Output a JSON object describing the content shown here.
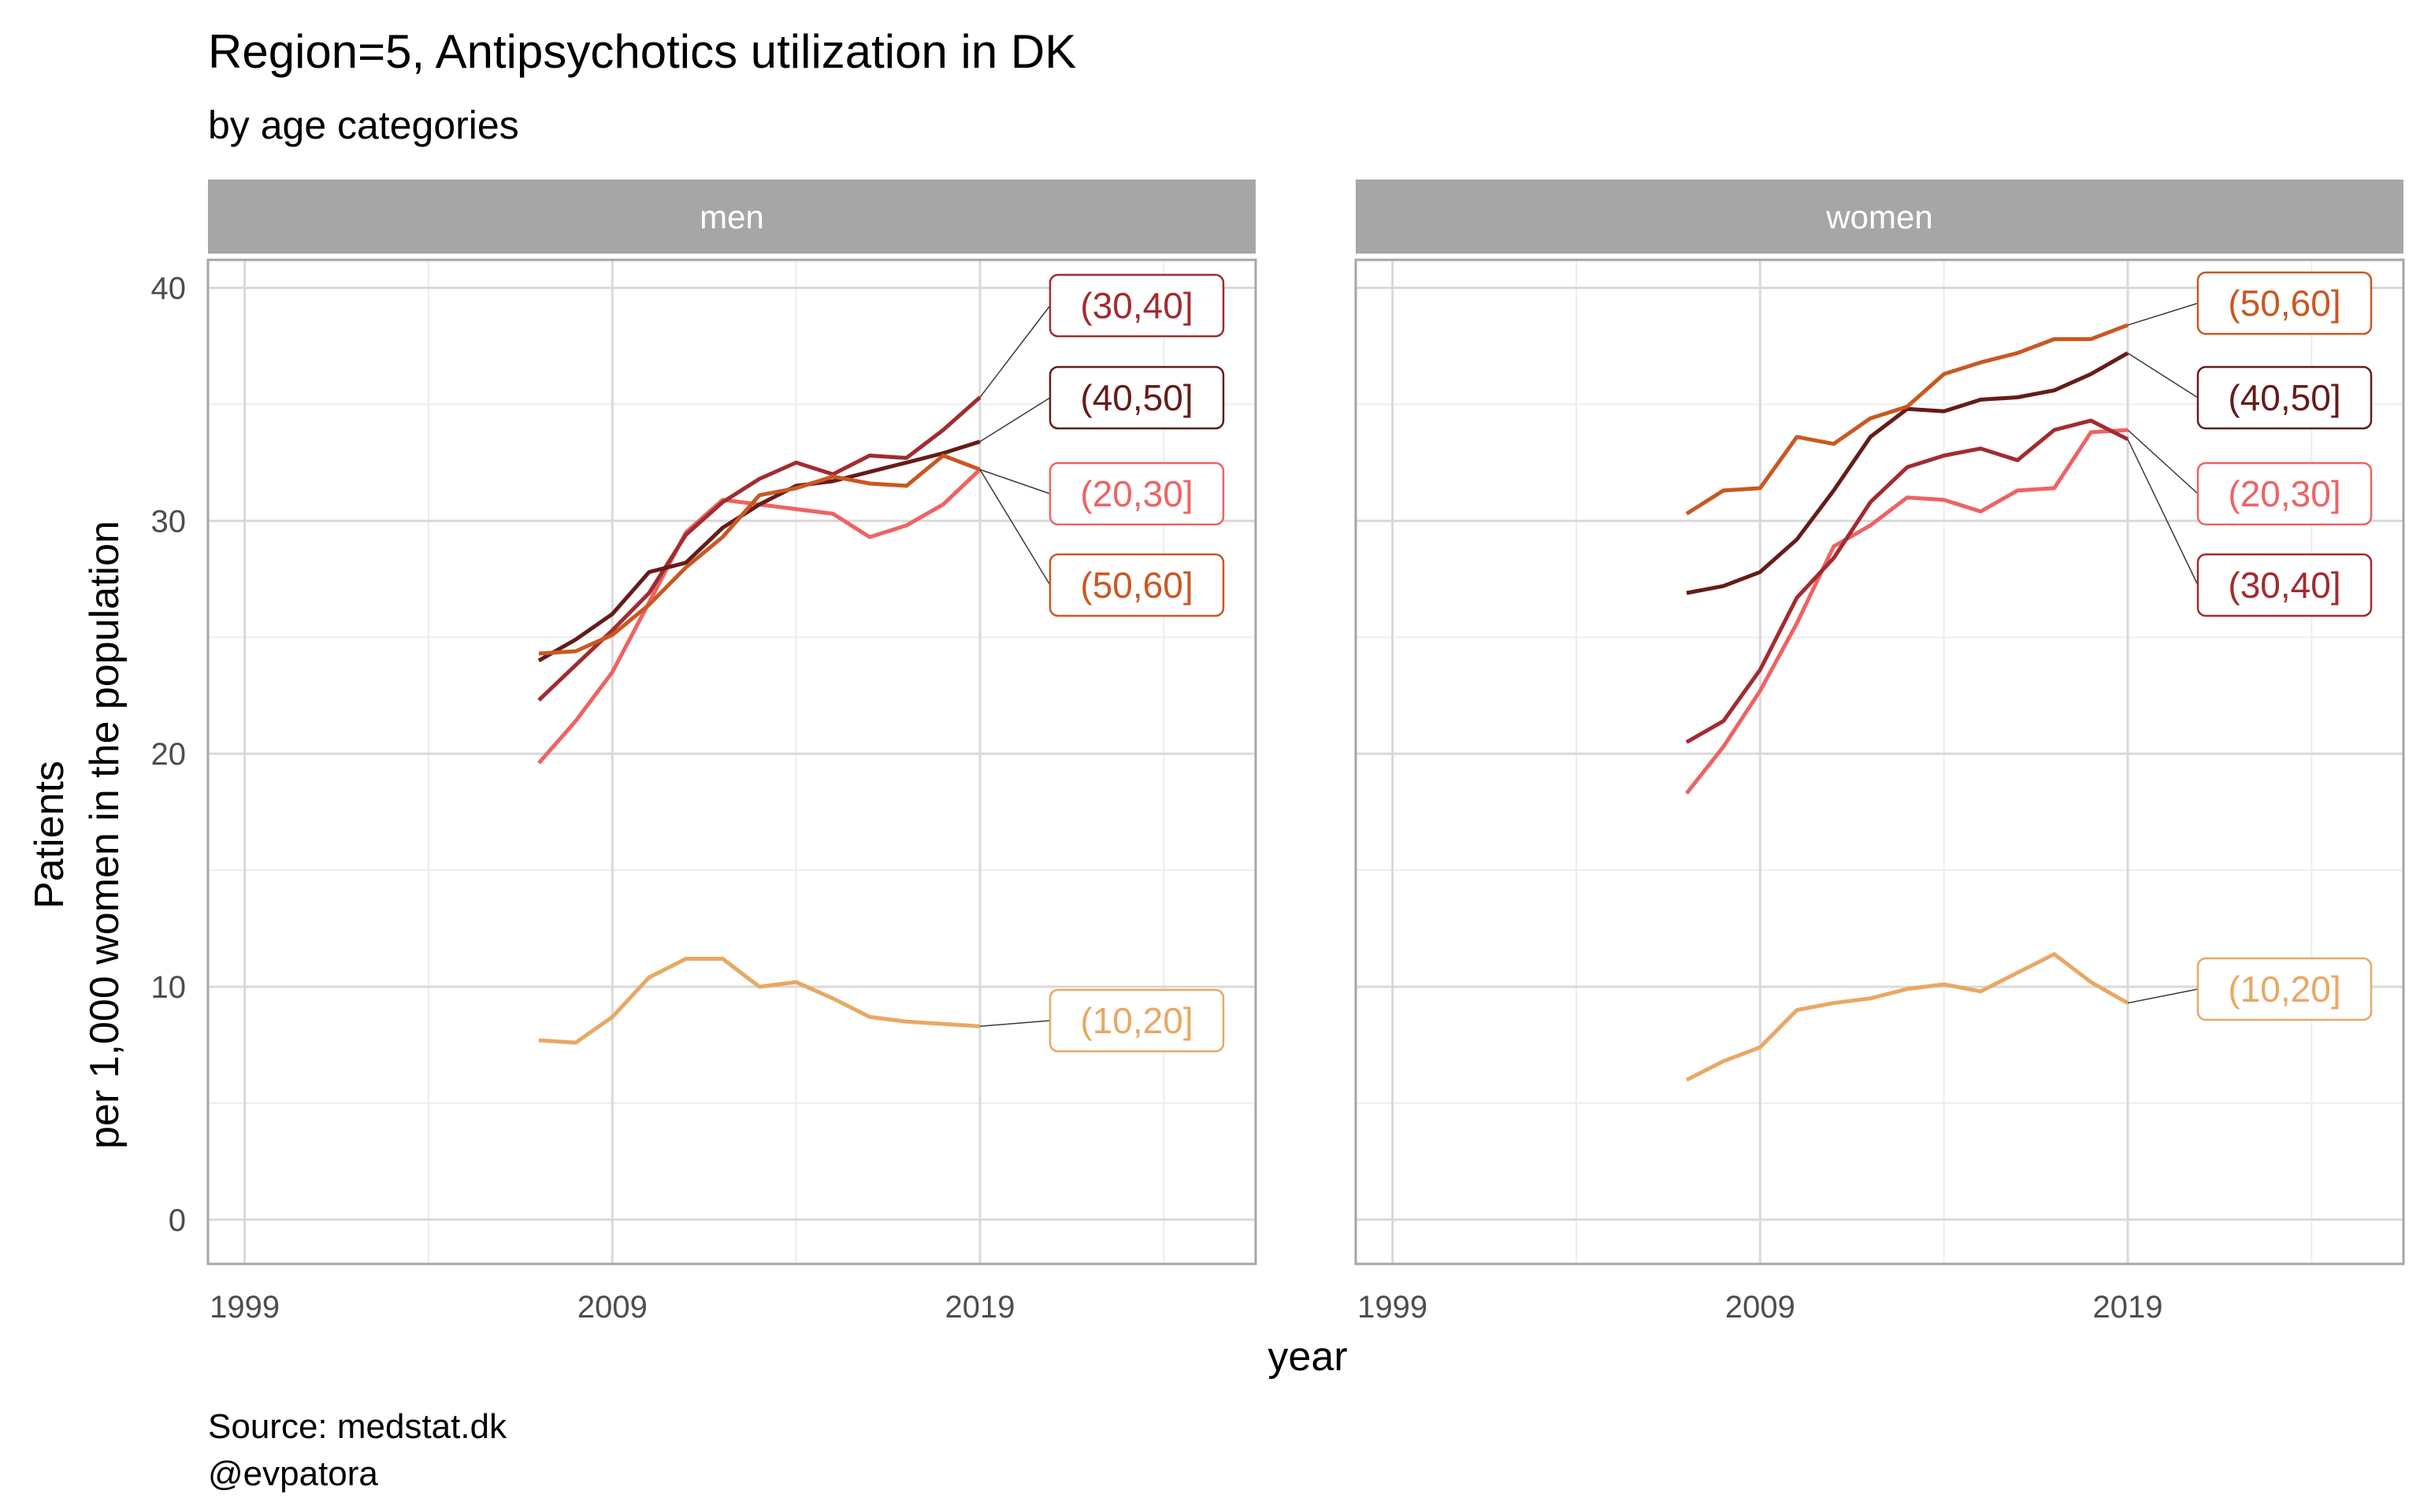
{
  "chart_data": {
    "type": "line",
    "title": "Region=5, Antipsychotics utilization in DK",
    "subtitle": "by age categories",
    "xlabel": "year",
    "ylabel_line1": "Patients",
    "ylabel_line2": "per 1,000 women in the population",
    "caption_line1": "Source: medstat.dk",
    "caption_line2": "@evpatora",
    "xlim": [
      1998,
      2026.5
    ],
    "ylim": [
      -1.9,
      41.2
    ],
    "x_ticks": [
      1999,
      2009,
      2019
    ],
    "x_ticks_text": [
      "1999",
      "2009",
      "2019"
    ],
    "y_ticks": [
      0,
      10,
      20,
      30,
      40
    ],
    "y_ticks_text": [
      "0",
      "10",
      "20",
      "30",
      "40"
    ],
    "grid": true,
    "legend": "direct labels at line ends",
    "colors": {
      "(10,20]": "#e8a864",
      "(20,30]": "#ee6363",
      "(30,40]": "#a22b2f",
      "(40,50]": "#651c18",
      "(50,60]": "#c95822"
    },
    "years": [
      2007,
      2008,
      2009,
      2010,
      2011,
      2012,
      2013,
      2014,
      2015,
      2016,
      2017,
      2018,
      2019
    ],
    "panels": [
      {
        "name": "men",
        "series": [
          {
            "name": "(10,20]",
            "values": [
              7.7,
              7.6,
              8.7,
              10.4,
              11.2,
              11.2,
              10.0,
              10.2,
              9.5,
              8.7,
              8.5,
              8.4,
              8.3
            ]
          },
          {
            "name": "(20,30]",
            "values": [
              19.6,
              21.4,
              23.5,
              26.5,
              29.5,
              30.9,
              30.7,
              30.5,
              30.3,
              29.3,
              29.8,
              30.7,
              32.2
            ]
          },
          {
            "name": "(30,40]",
            "values": [
              22.3,
              23.8,
              25.3,
              26.9,
              29.4,
              30.8,
              31.8,
              32.5,
              32.0,
              32.8,
              32.7,
              33.9,
              35.3
            ]
          },
          {
            "name": "(40,50]",
            "values": [
              24.0,
              24.9,
              26.0,
              27.8,
              28.2,
              29.7,
              30.7,
              31.5,
              31.7,
              32.1,
              32.5,
              32.9,
              33.4
            ]
          },
          {
            "name": "(50,60]",
            "values": [
              24.3,
              24.4,
              25.1,
              26.4,
              28.0,
              29.3,
              31.1,
              31.4,
              31.9,
              31.6,
              31.5,
              32.8,
              32.2
            ]
          }
        ],
        "labels": [
          {
            "series": "(30,40]",
            "text": "(30,40]"
          },
          {
            "series": "(40,50]",
            "text": "(40,50]"
          },
          {
            "series": "(20,30]",
            "text": "(20,30]"
          },
          {
            "series": "(50,60]",
            "text": "(50,60]"
          },
          {
            "series": "(10,20]",
            "text": "(10,20]"
          }
        ]
      },
      {
        "name": "women",
        "series": [
          {
            "name": "(10,20]",
            "values": [
              6.0,
              6.8,
              7.4,
              9.0,
              9.3,
              9.5,
              9.9,
              10.1,
              9.8,
              10.6,
              11.4,
              10.2,
              9.3
            ]
          },
          {
            "name": "(20,30]",
            "values": [
              18.3,
              20.3,
              22.7,
              25.6,
              28.9,
              29.8,
              31.0,
              30.9,
              30.4,
              31.3,
              31.4,
              33.8,
              33.9
            ]
          },
          {
            "name": "(30,40]",
            "values": [
              20.5,
              21.4,
              23.6,
              26.7,
              28.4,
              30.8,
              32.3,
              32.8,
              33.1,
              32.6,
              33.9,
              34.3,
              33.5
            ]
          },
          {
            "name": "(40,50]",
            "values": [
              26.9,
              27.2,
              27.8,
              29.2,
              31.3,
              33.6,
              34.8,
              34.7,
              35.2,
              35.3,
              35.6,
              36.3,
              37.2
            ]
          },
          {
            "name": "(50,60]",
            "values": [
              30.3,
              31.3,
              31.4,
              33.6,
              33.3,
              34.4,
              34.9,
              36.3,
              36.8,
              37.2,
              37.8,
              37.8,
              38.4
            ]
          }
        ],
        "labels": [
          {
            "series": "(50,60]",
            "text": "(50,60]"
          },
          {
            "series": "(40,50]",
            "text": "(40,50]"
          },
          {
            "series": "(20,30]",
            "text": "(20,30]"
          },
          {
            "series": "(30,40]",
            "text": "(30,40]"
          },
          {
            "series": "(10,20]",
            "text": "(10,20]"
          }
        ]
      }
    ]
  }
}
